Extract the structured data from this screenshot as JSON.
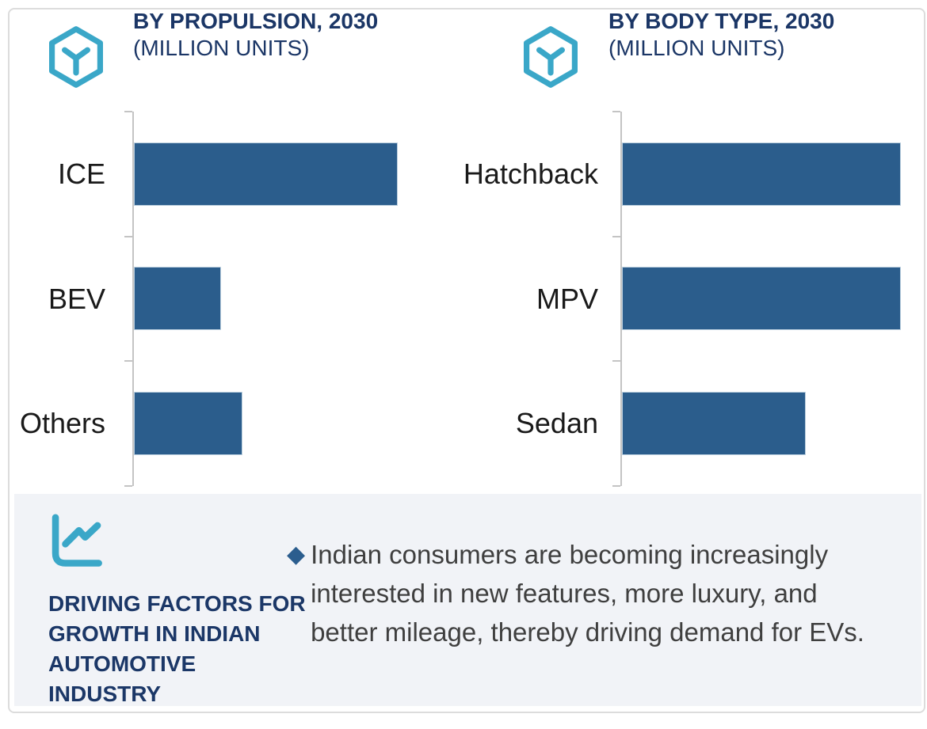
{
  "colors": {
    "bar": "#2b5d8c",
    "accent_teal": "#3aa7c8",
    "title_navy": "#1b3666",
    "footer_panel_bg": "#f1f3f7",
    "axis_gray": "#c4c4c4",
    "category_label_text": "#1a1a1a",
    "body_text": "#3f3f3f",
    "card_border": "#dcdcdc"
  },
  "icons": {
    "chart_header_icon": "hexagon-cube-icon",
    "footer_icon": "line-chart-icon",
    "bullet_icon": "diamond-bullet-icon"
  },
  "charts": [
    {
      "title_line1": "BY PROPULSION, 2030",
      "title_line2": "(MILLION UNITS)"
    },
    {
      "title_line1": "BY BODY TYPE, 2030",
      "title_line2": "(MILLION UNITS)"
    }
  ],
  "chart_data": [
    {
      "type": "bar",
      "orientation": "horizontal",
      "title": "BY PROPULSION, 2030 (MILLION UNITS)",
      "categories": [
        "ICE",
        "BEV",
        "Others"
      ],
      "values_relative": [
        100,
        33,
        41
      ],
      "value_axis_labels": "none shown; values estimated as relative bar lengths, longest bar = 100",
      "bar_color": "#2b5d8c",
      "grid": false,
      "legend": "none"
    },
    {
      "type": "bar",
      "orientation": "horizontal",
      "title": "BY BODY TYPE, 2030 (MILLION UNITS)",
      "categories": [
        "Hatchback",
        "MPV",
        "Sedan"
      ],
      "values_relative": [
        100,
        100,
        66
      ],
      "value_axis_labels": "none shown; values estimated as relative bar lengths, longest bar = 100",
      "bar_color": "#2b5d8c",
      "grid": false,
      "legend": "none"
    }
  ],
  "footer": {
    "heading_lines": [
      "DRIVING FACTORS FOR",
      "GROWTH IN INDIAN",
      "AUTOMOTIVE",
      "INDUSTRY"
    ],
    "bullet_icon": "◆",
    "bullet_text": "Indian consumers are becoming increasingly interested in new features, more luxury, and better mileage, thereby driving demand for EVs."
  }
}
